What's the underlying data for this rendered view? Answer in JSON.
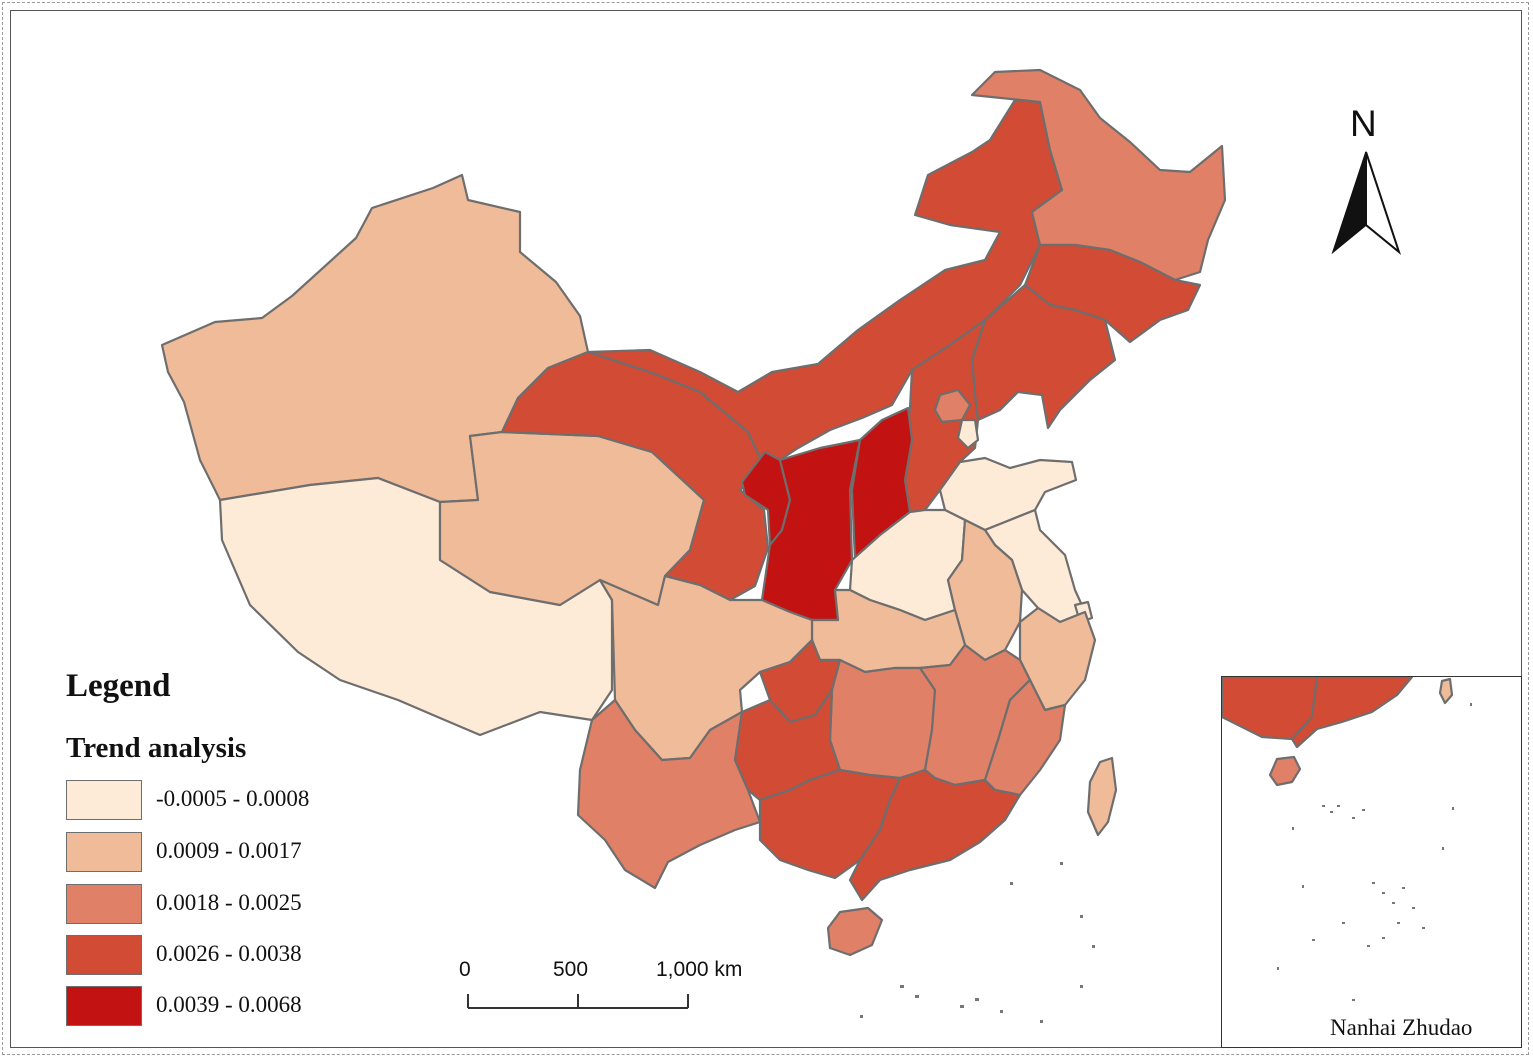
{
  "legend": {
    "title": "Legend",
    "subtitle": "Trend analysis",
    "classes": [
      {
        "label": "-0.0005 - 0.0008",
        "color": "#fdebd7"
      },
      {
        "label": "0.0009 - 0.0017",
        "color": "#efbb98"
      },
      {
        "label": "0.0018 - 0.0025",
        "color": "#e08066"
      },
      {
        "label": "0.0026 - 0.0038",
        "color": "#d14b35"
      },
      {
        "label": "0.0039 - 0.0068",
        "color": "#c21212"
      }
    ]
  },
  "scale_bar": {
    "labels": [
      "0",
      "500",
      "1,000 km"
    ]
  },
  "north_arrow": {
    "letter": "N"
  },
  "inset": {
    "label": "Nanhai Zhudao"
  },
  "regions": [
    {
      "name": "Xinjiang",
      "class": 1
    },
    {
      "name": "Tibet",
      "class": 0
    },
    {
      "name": "Qinghai",
      "class": 1
    },
    {
      "name": "Gansu",
      "class": 3
    },
    {
      "name": "Inner Mongolia",
      "class": 3
    },
    {
      "name": "Heilongjiang",
      "class": 2
    },
    {
      "name": "Jilin",
      "class": 3
    },
    {
      "name": "Liaoning",
      "class": 3
    },
    {
      "name": "Ningxia",
      "class": 4
    },
    {
      "name": "Shaanxi",
      "class": 4
    },
    {
      "name": "Shanxi",
      "class": 4
    },
    {
      "name": "Hebei",
      "class": 3
    },
    {
      "name": "Beijing",
      "class": 2
    },
    {
      "name": "Tianjin",
      "class": 0
    },
    {
      "name": "Shandong",
      "class": 0
    },
    {
      "name": "Henan",
      "class": 0
    },
    {
      "name": "Jiangsu",
      "class": 0
    },
    {
      "name": "Shanghai",
      "class": 0
    },
    {
      "name": "Anhui",
      "class": 1
    },
    {
      "name": "Hubei",
      "class": 1
    },
    {
      "name": "Sichuan",
      "class": 1
    },
    {
      "name": "Chongqing",
      "class": 3
    },
    {
      "name": "Zhejiang",
      "class": 1
    },
    {
      "name": "Taiwan",
      "class": 1
    },
    {
      "name": "Hunan",
      "class": 2
    },
    {
      "name": "Jiangxi",
      "class": 2
    },
    {
      "name": "Fujian",
      "class": 2
    },
    {
      "name": "Yunnan",
      "class": 2
    },
    {
      "name": "Guizhou",
      "class": 3
    },
    {
      "name": "Guangxi",
      "class": 3
    },
    {
      "name": "Guangdong",
      "class": 3
    },
    {
      "name": "Hainan",
      "class": 2
    }
  ]
}
